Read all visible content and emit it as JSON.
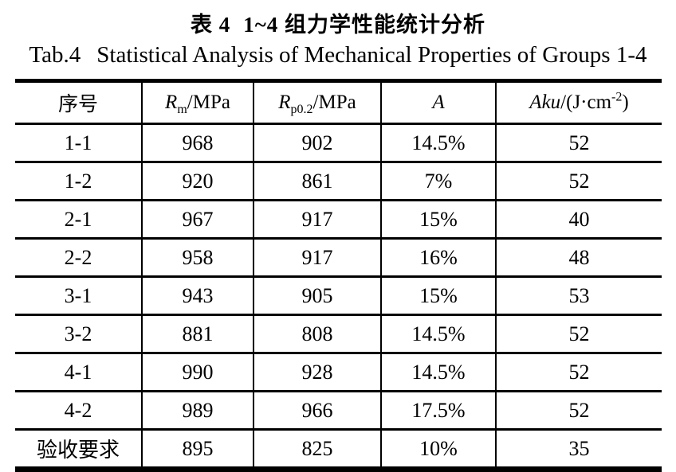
{
  "caption_zh": {
    "label": "表 4",
    "text": "1~4 组力学性能统计分析"
  },
  "caption_en": {
    "label": "Tab.4",
    "text": "Statistical Analysis of Mechanical Properties of Groups 1-4"
  },
  "table": {
    "header": {
      "col1": "序号",
      "col2": {
        "symbol": "R",
        "sub": "m",
        "rest": "/MPa"
      },
      "col3": {
        "symbol": "R",
        "sub": "p0.2",
        "rest": "/MPa"
      },
      "col4": "A",
      "col5": {
        "symbol": "Aku",
        "pre": "/(J·cm",
        "sup": "-2",
        "post": ")"
      }
    },
    "rows": [
      [
        "1-1",
        "968",
        "902",
        "14.5%",
        "52"
      ],
      [
        "1-2",
        "920",
        "861",
        "7%",
        "52"
      ],
      [
        "2-1",
        "967",
        "917",
        "15%",
        "40"
      ],
      [
        "2-2",
        "958",
        "917",
        "16%",
        "48"
      ],
      [
        "3-1",
        "943",
        "905",
        "15%",
        "53"
      ],
      [
        "3-2",
        "881",
        "808",
        "14.5%",
        "52"
      ],
      [
        "4-1",
        "990",
        "928",
        "14.5%",
        "52"
      ],
      [
        "4-2",
        "989",
        "966",
        "17.5%",
        "52"
      ],
      [
        "验收要求",
        "895",
        "825",
        "10%",
        "35"
      ]
    ]
  },
  "colors": {
    "text": "#000000",
    "background": "#ffffff",
    "rule": "#000000"
  }
}
